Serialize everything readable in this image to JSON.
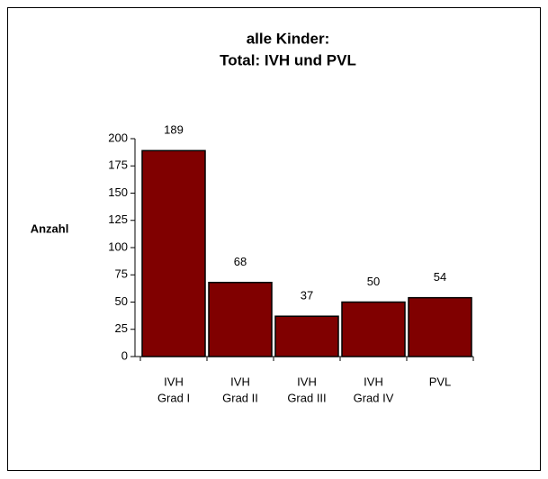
{
  "chart_data": {
    "type": "bar",
    "title": [
      "alle Kinder:",
      "Total: IVH und PVL"
    ],
    "y_label": "Anzahl",
    "categories": [
      [
        "IVH",
        "Grad I"
      ],
      [
        "IVH",
        "Grad II"
      ],
      [
        "IVH",
        "Grad III"
      ],
      [
        "IVH",
        "Grad IV"
      ],
      [
        "PVL"
      ]
    ],
    "values": [
      189,
      68,
      37,
      50,
      54
    ],
    "color": "#800000",
    "ylim": [
      0,
      200
    ],
    "yticks": [
      0,
      25,
      50,
      75,
      100,
      125,
      150,
      175,
      200
    ],
    "grid": false
  }
}
